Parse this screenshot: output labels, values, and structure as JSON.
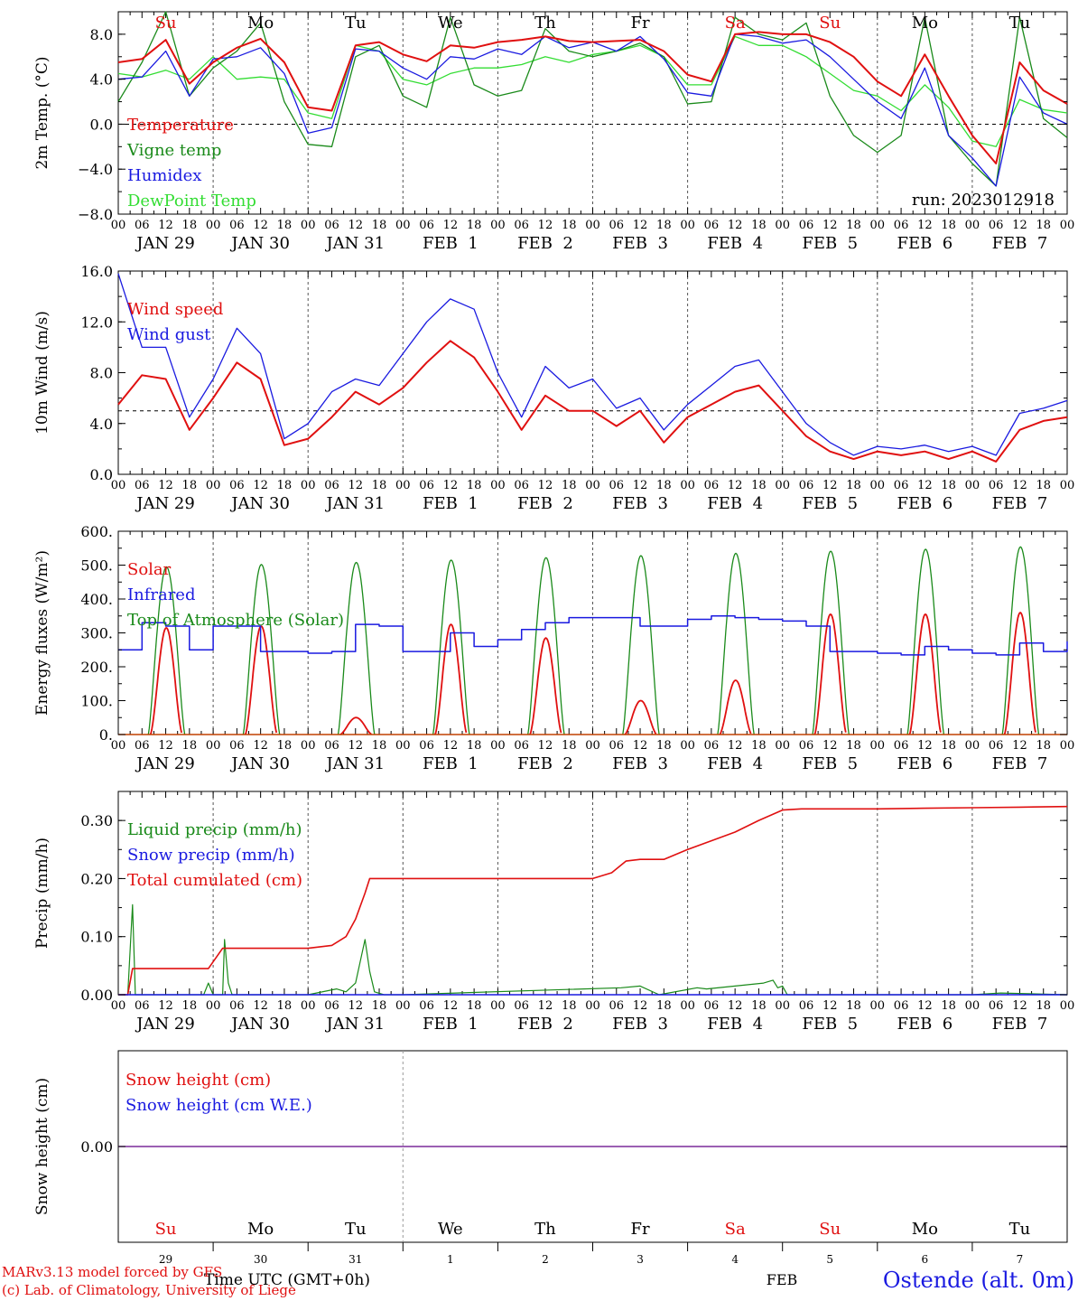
{
  "colors": {
    "red": "#e01010",
    "green": "#1a8a1a",
    "blue": "#1a1ae0",
    "lightgreen": "#33dd33",
    "purple": "#7a2a9a",
    "axis": "#000000"
  },
  "x_axis": {
    "hour_labels": [
      "00",
      "06",
      "12",
      "18"
    ],
    "last_hour_label": "00",
    "date_labels": [
      "JAN 29",
      "JAN 30",
      "JAN 31",
      "FEB  1",
      "FEB  2",
      "FEB  3",
      "FEB  4",
      "FEB  5",
      "FEB  6",
      "FEB  7"
    ]
  },
  "weekdays": [
    "Su",
    "Mo",
    "Tu",
    "We",
    "Th",
    "Fr",
    "Sa",
    "Su",
    "Mo",
    "Tu"
  ],
  "weekday_colors": [
    "red",
    "black",
    "black",
    "black",
    "black",
    "black",
    "red",
    "red",
    "black",
    "black"
  ],
  "chart_data": [
    {
      "type": "line",
      "ylabel": "2m Temp. (°C)",
      "ylim": [
        -8,
        10
      ],
      "yticks": [
        "8.0",
        "4.0",
        "0.0",
        "−4.0",
        "−8.0"
      ],
      "reference_line": 0,
      "run_label": "run: 2023012918",
      "legend": [
        "Temperature",
        "Vigne temp",
        "Humidex",
        "DewPoint Temp"
      ],
      "x_days": [
        0,
        0.25,
        0.5,
        0.75,
        1,
        1.25,
        1.5,
        1.75,
        2,
        2.25,
        2.5,
        2.75,
        3,
        3.25,
        3.5,
        3.75,
        4,
        4.25,
        4.5,
        4.75,
        5,
        5.25,
        5.5,
        5.75,
        6,
        6.25,
        6.5,
        6.75,
        7,
        7.25,
        7.5,
        7.75,
        8,
        8.25,
        8.5,
        8.75,
        9,
        9.25,
        9.5,
        9.75,
        10
      ],
      "series": [
        {
          "name": "Temperature",
          "color": "red",
          "values": [
            5.5,
            5.8,
            7.5,
            3.6,
            5.5,
            6.8,
            7.6,
            5.5,
            1.5,
            1.2,
            7.0,
            7.3,
            6.2,
            5.6,
            7.0,
            6.8,
            7.3,
            7.5,
            7.8,
            7.4,
            7.3,
            7.4,
            7.5,
            6.5,
            4.4,
            3.8,
            8.0,
            8.2,
            8.0,
            8.0,
            7.3,
            6.0,
            3.8,
            2.5,
            6.2,
            2.5,
            -1.0,
            -3.5,
            5.5,
            3.0,
            1.8
          ]
        },
        {
          "name": "Vigne temp",
          "color": "green",
          "values": [
            2.0,
            5.5,
            10.0,
            2.5,
            5.0,
            6.5,
            9.0,
            2.0,
            -1.8,
            -2.0,
            6.0,
            7.0,
            2.5,
            1.5,
            9.5,
            3.5,
            2.5,
            3.0,
            8.5,
            6.5,
            6.0,
            6.5,
            7.2,
            6.0,
            1.8,
            2.0,
            9.5,
            8.0,
            7.5,
            9.0,
            2.5,
            -1.0,
            -2.5,
            -1.0,
            9.5,
            -1.0,
            -3.5,
            -5.5,
            9.5,
            0.5,
            -1.2
          ]
        },
        {
          "name": "Humidex",
          "color": "blue",
          "values": [
            4.0,
            4.2,
            6.5,
            2.5,
            5.8,
            6.0,
            6.8,
            4.5,
            -0.8,
            -0.3,
            6.7,
            6.5,
            5.0,
            4.0,
            6.0,
            5.8,
            6.7,
            6.2,
            7.8,
            6.8,
            7.3,
            6.5,
            7.8,
            5.8,
            2.8,
            2.5,
            8.0,
            7.8,
            7.2,
            7.5,
            6.0,
            4.0,
            2.0,
            0.5,
            5.0,
            -1.0,
            -3.0,
            -5.5,
            4.2,
            1.0,
            0.0
          ]
        },
        {
          "name": "DewPoint Temp",
          "color": "lightgreen",
          "values": [
            4.5,
            4.2,
            4.8,
            4.0,
            6.0,
            4.0,
            4.2,
            4.0,
            1.0,
            0.5,
            7.0,
            6.5,
            4.0,
            3.5,
            4.5,
            5.0,
            5.0,
            5.3,
            6.0,
            5.5,
            6.2,
            6.5,
            7.0,
            6.0,
            3.5,
            3.5,
            7.8,
            7.0,
            7.0,
            6.0,
            4.5,
            3.0,
            2.5,
            1.2,
            3.5,
            1.5,
            -1.5,
            -2.0,
            2.2,
            1.3,
            1.0
          ]
        }
      ]
    },
    {
      "type": "line",
      "ylabel": "10m Wind (m/s)",
      "ylim": [
        0,
        16
      ],
      "yticks": [
        "16.0",
        "12.0",
        "8.0",
        "4.0",
        "0.0"
      ],
      "reference_line": 5,
      "legend": [
        "Wind speed",
        "Wind gust"
      ],
      "x_days": [
        0,
        0.25,
        0.5,
        0.75,
        1,
        1.25,
        1.5,
        1.75,
        2,
        2.25,
        2.5,
        2.75,
        3,
        3.25,
        3.5,
        3.75,
        4,
        4.25,
        4.5,
        4.75,
        5,
        5.25,
        5.5,
        5.75,
        6,
        6.25,
        6.5,
        6.75,
        7,
        7.25,
        7.5,
        7.75,
        8,
        8.25,
        8.5,
        8.75,
        9,
        9.25,
        9.5,
        9.75,
        10
      ],
      "series": [
        {
          "name": "Wind speed",
          "color": "red",
          "values": [
            5.5,
            7.8,
            7.5,
            3.5,
            6.0,
            8.8,
            7.5,
            2.3,
            2.8,
            4.5,
            6.5,
            5.5,
            6.8,
            8.8,
            10.5,
            9.2,
            6.5,
            3.5,
            6.2,
            5.0,
            5.0,
            3.8,
            5.0,
            2.5,
            4.5,
            5.5,
            6.5,
            7.0,
            5.0,
            3.0,
            1.8,
            1.2,
            1.8,
            1.5,
            1.8,
            1.2,
            1.8,
            1.0,
            3.5,
            4.2,
            4.5
          ]
        },
        {
          "name": "Wind gust",
          "color": "blue",
          "values": [
            15.8,
            10.0,
            10.0,
            4.5,
            7.5,
            11.5,
            9.5,
            2.8,
            4.0,
            6.5,
            7.5,
            7.0,
            9.5,
            12.0,
            13.8,
            13.0,
            8.0,
            4.5,
            8.5,
            6.8,
            7.5,
            5.2,
            6.0,
            3.5,
            5.5,
            7.0,
            8.5,
            9.0,
            6.5,
            4.0,
            2.5,
            1.5,
            2.2,
            2.0,
            2.3,
            1.8,
            2.2,
            1.5,
            4.8,
            5.2,
            5.8
          ]
        }
      ]
    },
    {
      "type": "line",
      "ylabel": "Energy fluxes (W/m²)",
      "ylim": [
        0,
        600
      ],
      "yticks": [
        "600.",
        "500.",
        "400.",
        "300.",
        "200.",
        "100.",
        "0."
      ],
      "legend": [
        "Solar",
        "Infrared",
        "Top of Atmosphere (Solar)"
      ],
      "toa_peaks": [
        495,
        502,
        508,
        515,
        522,
        528,
        535,
        541,
        547,
        554
      ],
      "solar_peaks": [
        315,
        320,
        50,
        325,
        285,
        100,
        160,
        355,
        355,
        360
      ],
      "infrared": {
        "x_days": [
          0,
          0.25,
          0.5,
          0.75,
          1,
          1.25,
          1.5,
          1.75,
          2,
          2.25,
          2.5,
          2.75,
          3,
          3.25,
          3.5,
          3.75,
          4,
          4.25,
          4.5,
          4.75,
          5,
          5.25,
          5.5,
          5.75,
          6,
          6.25,
          6.5,
          6.75,
          7,
          7.25,
          7.5,
          7.75,
          8,
          8.25,
          8.5,
          8.75,
          9,
          9.25,
          9.5,
          9.75,
          10
        ],
        "values": [
          250,
          330,
          320,
          250,
          320,
          320,
          245,
          245,
          240,
          245,
          325,
          320,
          245,
          245,
          300,
          260,
          280,
          310,
          330,
          345,
          345,
          345,
          320,
          320,
          340,
          350,
          345,
          340,
          335,
          320,
          245,
          245,
          240,
          235,
          260,
          250,
          240,
          235,
          270,
          245,
          275
        ]
      }
    },
    {
      "type": "line",
      "ylabel": "Precip (mm/h)",
      "ylim": [
        0,
        0.35
      ],
      "yticks": [
        "0.30",
        "0.20",
        "0.10",
        "0.00"
      ],
      "legend": [
        "Liquid precip (mm/h)",
        "Snow precip (mm/h)",
        "Total cumulated (cm)"
      ],
      "cumulated": {
        "x_days": [
          0,
          0.1,
          0.15,
          0.2,
          0.95,
          1.1,
          1.2,
          2.0,
          2.25,
          2.4,
          2.5,
          2.6,
          2.65,
          2.7,
          3.0,
          5.0,
          5.2,
          5.35,
          5.5,
          5.75,
          6.0,
          6.25,
          6.5,
          6.75,
          7.0,
          7.2,
          7.5,
          8.0,
          8.5,
          9.0,
          9.5,
          10.0
        ],
        "values": [
          0,
          0,
          0.045,
          0.045,
          0.045,
          0.08,
          0.08,
          0.08,
          0.085,
          0.1,
          0.13,
          0.175,
          0.2,
          0.2,
          0.2,
          0.2,
          0.21,
          0.23,
          0.233,
          0.233,
          0.25,
          0.265,
          0.28,
          0.3,
          0.318,
          0.32,
          0.32,
          0.32,
          0.321,
          0.322,
          0.323,
          0.324
        ]
      },
      "liquid": {
        "x_days": [
          0,
          0.1,
          0.15,
          0.18,
          0.25,
          0.9,
          0.95,
          1.0,
          1.1,
          1.12,
          1.16,
          1.2,
          2.0,
          2.3,
          2.4,
          2.5,
          2.6,
          2.65,
          2.7,
          2.8,
          3.0,
          5.3,
          5.5,
          5.7,
          6.1,
          6.2,
          6.5,
          6.8,
          6.9,
          6.95,
          7.0,
          7.05,
          7.5,
          8.5,
          9.0,
          9.3,
          10.0
        ],
        "values": [
          0,
          0,
          0.155,
          0,
          0,
          0,
          0.02,
          0,
          0,
          0.095,
          0.02,
          0,
          0,
          0.01,
          0.005,
          0.02,
          0.095,
          0.04,
          0.005,
          0,
          0,
          0.012,
          0.015,
          0,
          0.012,
          0.01,
          0.015,
          0.02,
          0.025,
          0.012,
          0.015,
          0,
          0,
          0,
          0,
          0.003,
          0
        ]
      }
    },
    {
      "type": "line",
      "ylabel": "Snow height (cm)",
      "yticks": [
        "0.00"
      ],
      "legend": [
        "Snow height (cm)",
        "Snow height (cm W.E.)"
      ],
      "x_days": [
        0,
        10
      ],
      "series": [
        {
          "name": "Snow height (cm)",
          "color": "red",
          "values": [
            0,
            0
          ]
        },
        {
          "name": "Snow height (cm W.E.)",
          "color": "blue",
          "values": [
            0,
            0
          ]
        }
      ],
      "day_numbers": [
        "29",
        "30",
        "31",
        "1",
        "2",
        "3",
        "4",
        "5",
        "6",
        "7"
      ],
      "month_label": "FEB",
      "xlabel": "Time UTC (GMT+0h)"
    }
  ],
  "footer": {
    "model_line": "MARv3.13 model forced by GFS",
    "credit_line": "(c) Lab. of Climatology, University of Liege",
    "station": "Ostende (alt. 0m)"
  }
}
